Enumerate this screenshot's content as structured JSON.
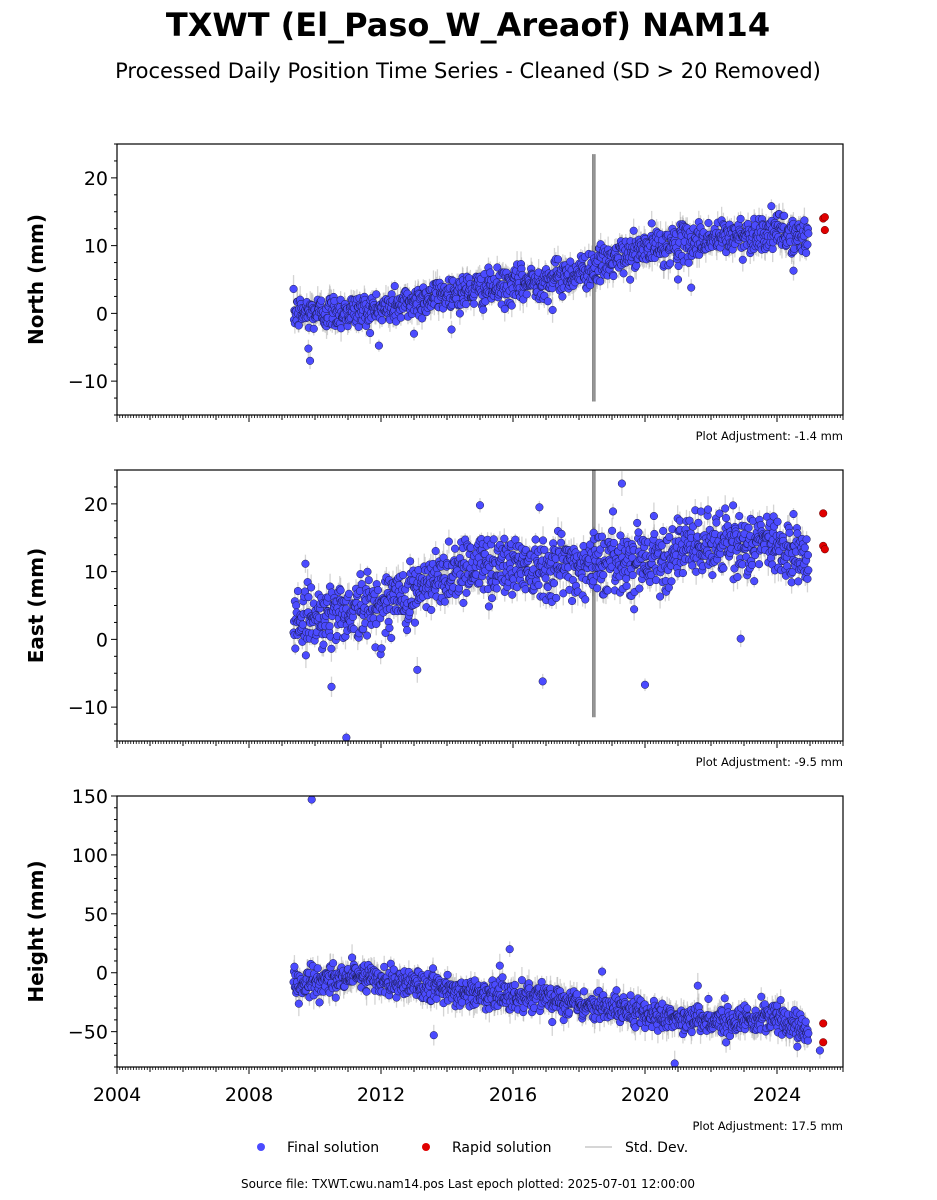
{
  "title": "TXWT (El_Paso_W_Areaof) NAM14",
  "subtitle": "Processed Daily Position Time Series - Cleaned (SD > 20 Removed)",
  "colors": {
    "final": "#4b4bff",
    "rapid": "#e00000",
    "std_dev": "#b0b0b0",
    "spike": "#555555"
  },
  "legend": {
    "final": "Final solution",
    "rapid": "Rapid solution",
    "std_dev": "Std. Dev."
  },
  "footer": "Source file: TXWT.cwu.nam14.pos  Last epoch plotted: 2025-07-01 12:00:00",
  "chart_data": [
    {
      "type": "scatter",
      "component": "north",
      "ylabel": "North (mm)",
      "xlim": [
        2004,
        2026
      ],
      "ylim": [
        -15,
        25
      ],
      "yticks": [
        -10,
        0,
        10,
        20
      ],
      "ytick_labels": [
        "−10",
        "0",
        "10",
        "20"
      ],
      "adjustment": "Plot Adjustment: -1.4 mm",
      "data_start": 2009.35,
      "data_end": 2024.95,
      "trend": [
        [
          2009.35,
          0.0
        ],
        [
          2012.0,
          0.5
        ],
        [
          2014.0,
          3.0
        ],
        [
          2016.0,
          4.0
        ],
        [
          2018.0,
          6.0
        ],
        [
          2020.0,
          9.5
        ],
        [
          2022.0,
          11.0
        ],
        [
          2024.0,
          12.0
        ],
        [
          2024.95,
          11.0
        ]
      ],
      "scatter_sd": 1.3,
      "outliers": [
        [
          2009.85,
          -7.0
        ],
        [
          2009.8,
          -5.2
        ],
        [
          2017.2,
          0.5
        ],
        [
          2021.4,
          3.8
        ],
        [
          2021.0,
          5.0
        ],
        [
          2024.5,
          6.3
        ],
        [
          2013.0,
          -3.0
        ]
      ],
      "spikes": [
        {
          "x": 2018.45,
          "y_min": -13,
          "y_max": 23.5
        }
      ],
      "rapid": [
        [
          2025.4,
          14.0
        ],
        [
          2025.45,
          14.2
        ],
        [
          2025.45,
          12.3
        ]
      ]
    },
    {
      "type": "scatter",
      "component": "east",
      "ylabel": "East (mm)",
      "xlim": [
        2004,
        2026
      ],
      "ylim": [
        -15,
        25
      ],
      "yticks": [
        -10,
        0,
        10,
        20
      ],
      "ytick_labels": [
        "−10",
        "0",
        "10",
        "20"
      ],
      "adjustment": "Plot Adjustment: -9.5 mm",
      "data_start": 2009.35,
      "data_end": 2024.95,
      "trend": [
        [
          2009.35,
          3.0
        ],
        [
          2012.0,
          5.0
        ],
        [
          2013.5,
          8.0
        ],
        [
          2014.5,
          11.0
        ],
        [
          2016.0,
          11.0
        ],
        [
          2018.0,
          11.0
        ],
        [
          2020.0,
          12.0
        ],
        [
          2022.0,
          14.0
        ],
        [
          2024.0,
          14.0
        ],
        [
          2024.95,
          12.0
        ]
      ],
      "scatter_sd": 2.3,
      "outliers": [
        [
          2010.95,
          -14.5
        ],
        [
          2019.3,
          23.0
        ],
        [
          2016.8,
          19.5
        ],
        [
          2020.0,
          -6.7
        ],
        [
          2022.9,
          0.1
        ],
        [
          2016.9,
          -6.2
        ],
        [
          2024.5,
          18.5
        ],
        [
          2013.1,
          -4.5
        ],
        [
          2010.5,
          -7.0
        ],
        [
          2015.0,
          19.8
        ]
      ],
      "spikes": [
        {
          "x": 2018.45,
          "y_min": -11.5,
          "y_max": 25
        }
      ],
      "rapid": [
        [
          2025.4,
          13.8
        ],
        [
          2025.45,
          13.3
        ],
        [
          2025.4,
          18.6
        ]
      ]
    },
    {
      "type": "scatter",
      "component": "height",
      "ylabel": "Height (mm)",
      "xlim": [
        2004,
        2026
      ],
      "ylim": [
        -80,
        150
      ],
      "yticks": [
        -50,
        0,
        50,
        100,
        150
      ],
      "ytick_labels": [
        "−50",
        "0",
        "50",
        "100",
        "150"
      ],
      "xticks": [
        2004,
        2008,
        2012,
        2016,
        2020,
        2024
      ],
      "xtick_labels": [
        "2004",
        "2008",
        "2012",
        "2016",
        "2020",
        "2024"
      ],
      "adjustment": "Plot Adjustment: 17.5 mm",
      "data_start": 2009.35,
      "data_end": 2024.95,
      "trend": [
        [
          2009.35,
          -10.0
        ],
        [
          2011.5,
          -3.0
        ],
        [
          2014.0,
          -15.0
        ],
        [
          2016.0,
          -20.0
        ],
        [
          2018.0,
          -25.0
        ],
        [
          2020.0,
          -35.0
        ],
        [
          2022.0,
          -42.0
        ],
        [
          2024.0,
          -38.0
        ],
        [
          2024.95,
          -50.0
        ]
      ],
      "scatter_sd": 6.0,
      "outliers": [
        [
          2009.9,
          147.0
        ],
        [
          2015.9,
          20.0
        ],
        [
          2013.6,
          -53.0
        ],
        [
          2020.9,
          -77.0
        ],
        [
          2021.6,
          -11.0
        ],
        [
          2025.3,
          -66.0
        ],
        [
          2018.7,
          1.0
        ],
        [
          2015.6,
          6.0
        ]
      ],
      "spikes": [],
      "rapid": [
        [
          2025.4,
          -43.0
        ],
        [
          2025.4,
          -59.0
        ]
      ]
    }
  ]
}
